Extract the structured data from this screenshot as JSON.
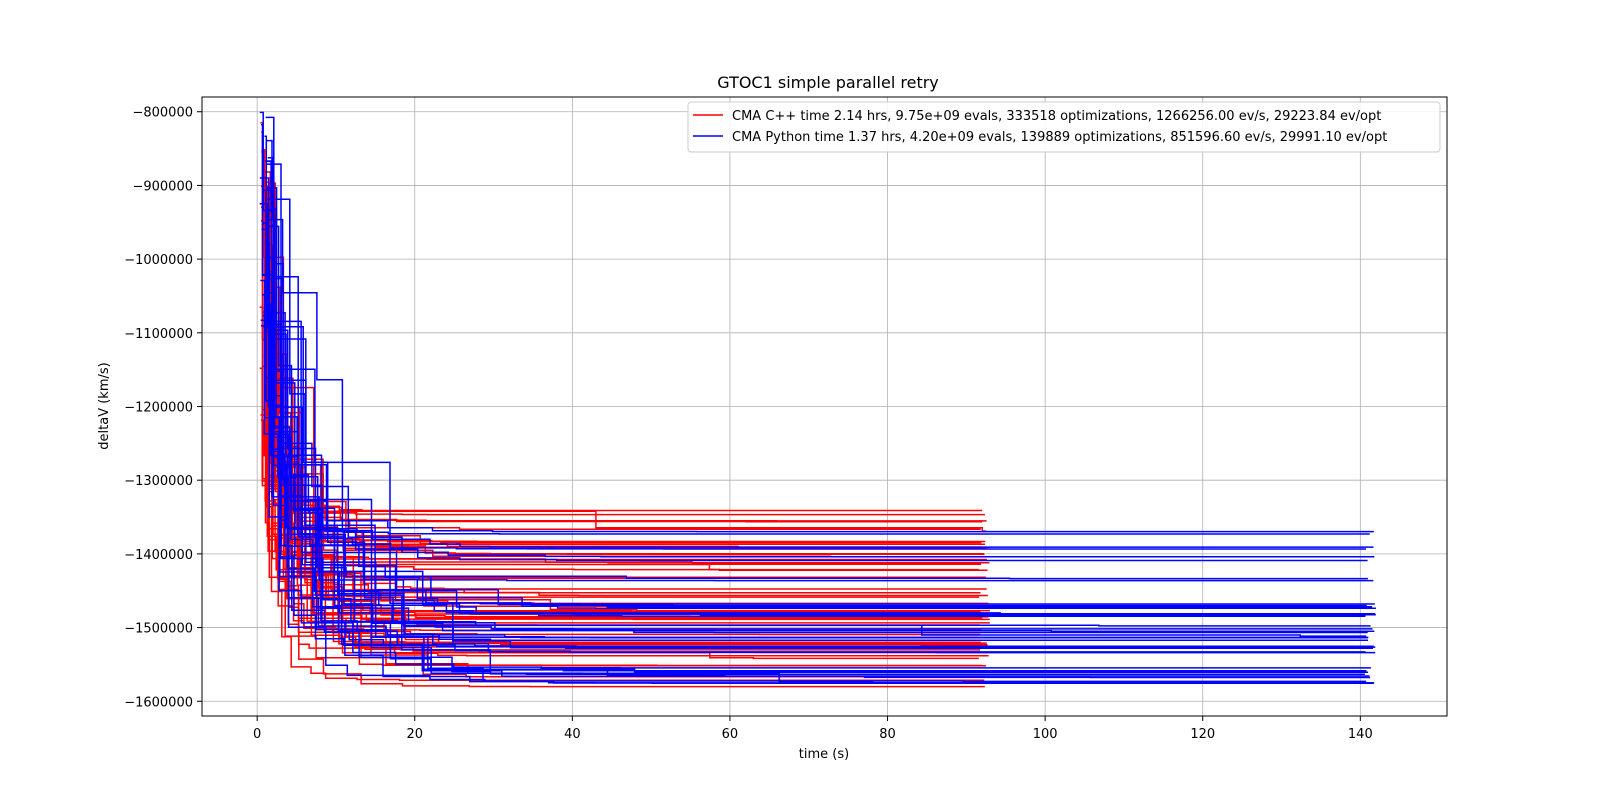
{
  "chart_data": {
    "type": "line",
    "title": "GTOC1 simple parallel retry",
    "xlabel": "time (s)",
    "ylabel": "deltaV (km/s)",
    "xlim": [
      -7,
      151
    ],
    "ylim": [
      -1620000,
      -780000
    ],
    "x_ticks": [
      0,
      20,
      40,
      60,
      80,
      100,
      120,
      140
    ],
    "x_tick_labels": [
      "0",
      "20",
      "40",
      "60",
      "80",
      "100",
      "120",
      "140"
    ],
    "y_ticks": [
      -800000,
      -900000,
      -1000000,
      -1100000,
      -1200000,
      -1300000,
      -1400000,
      -1500000,
      -1600000
    ],
    "y_tick_labels": [
      "−800000",
      "−900000",
      "−1000000",
      "−1100000",
      "−1200000",
      "−1300000",
      "−1400000",
      "−1500000",
      "−1600000"
    ],
    "grid": true,
    "legend_position": "top-right",
    "series": [
      {
        "name": "CMA C++ time 2.14 hrs, 9.75e+09 evals, 333518 optimizations, 1266256.00 ev/s, 29223.84 ev/opt",
        "color": "#ff0000",
        "runs": 55,
        "end_time": 93,
        "step_points": [
          [
            0.5,
            -810000
          ],
          [
            2,
            -900000
          ],
          [
            4,
            -1000000
          ],
          [
            6,
            -1120000
          ],
          [
            9,
            -1200000
          ],
          [
            13,
            -1260000
          ],
          [
            20,
            -1300000
          ],
          [
            30,
            -1320000
          ],
          [
            45,
            -1350000
          ],
          [
            60,
            -1380000
          ],
          [
            75,
            -1420000
          ],
          [
            93,
            -1460000
          ]
        ],
        "final_values": [
          -1345000,
          -1355000,
          -1370000,
          -1385000,
          -1390000,
          -1395000,
          -1400000,
          -1405000,
          -1415000,
          -1425000,
          -1430000,
          -1450000,
          -1460000,
          -1470000,
          -1475000,
          -1480000,
          -1485000,
          -1490000,
          -1500000,
          -1510000,
          -1520000,
          -1525000,
          -1530000,
          -1535000,
          -1545000,
          -1550000,
          -1555000,
          -1565000,
          -1570000,
          -1575000,
          -1580000
        ]
      },
      {
        "name": "CMA Python time 1.37 hrs, 4.20e+09 evals, 139889 optimizations, 851596.60 ev/s, 29991.10 ev/opt",
        "color": "#0000ff",
        "runs": 40,
        "end_time": 142,
        "step_points": [
          [
            1,
            -800000
          ],
          [
            3,
            -960000
          ],
          [
            6,
            -1100000
          ],
          [
            10,
            -1180000
          ],
          [
            16,
            -1250000
          ],
          [
            25,
            -1300000
          ],
          [
            35,
            -1330000
          ],
          [
            50,
            -1380000
          ],
          [
            70,
            -1420000
          ],
          [
            90,
            -1460000
          ],
          [
            120,
            -1500000
          ],
          [
            142,
            -1520000
          ]
        ],
        "final_values": [
          -1370000,
          -1390000,
          -1407000,
          -1435000,
          -1468000,
          -1473000,
          -1479000,
          -1483000,
          -1500000,
          -1503000,
          -1510000,
          -1517000,
          -1525000,
          -1530000,
          -1535000,
          -1558000,
          -1562000,
          -1568000,
          -1573000,
          -1578000
        ]
      }
    ]
  }
}
